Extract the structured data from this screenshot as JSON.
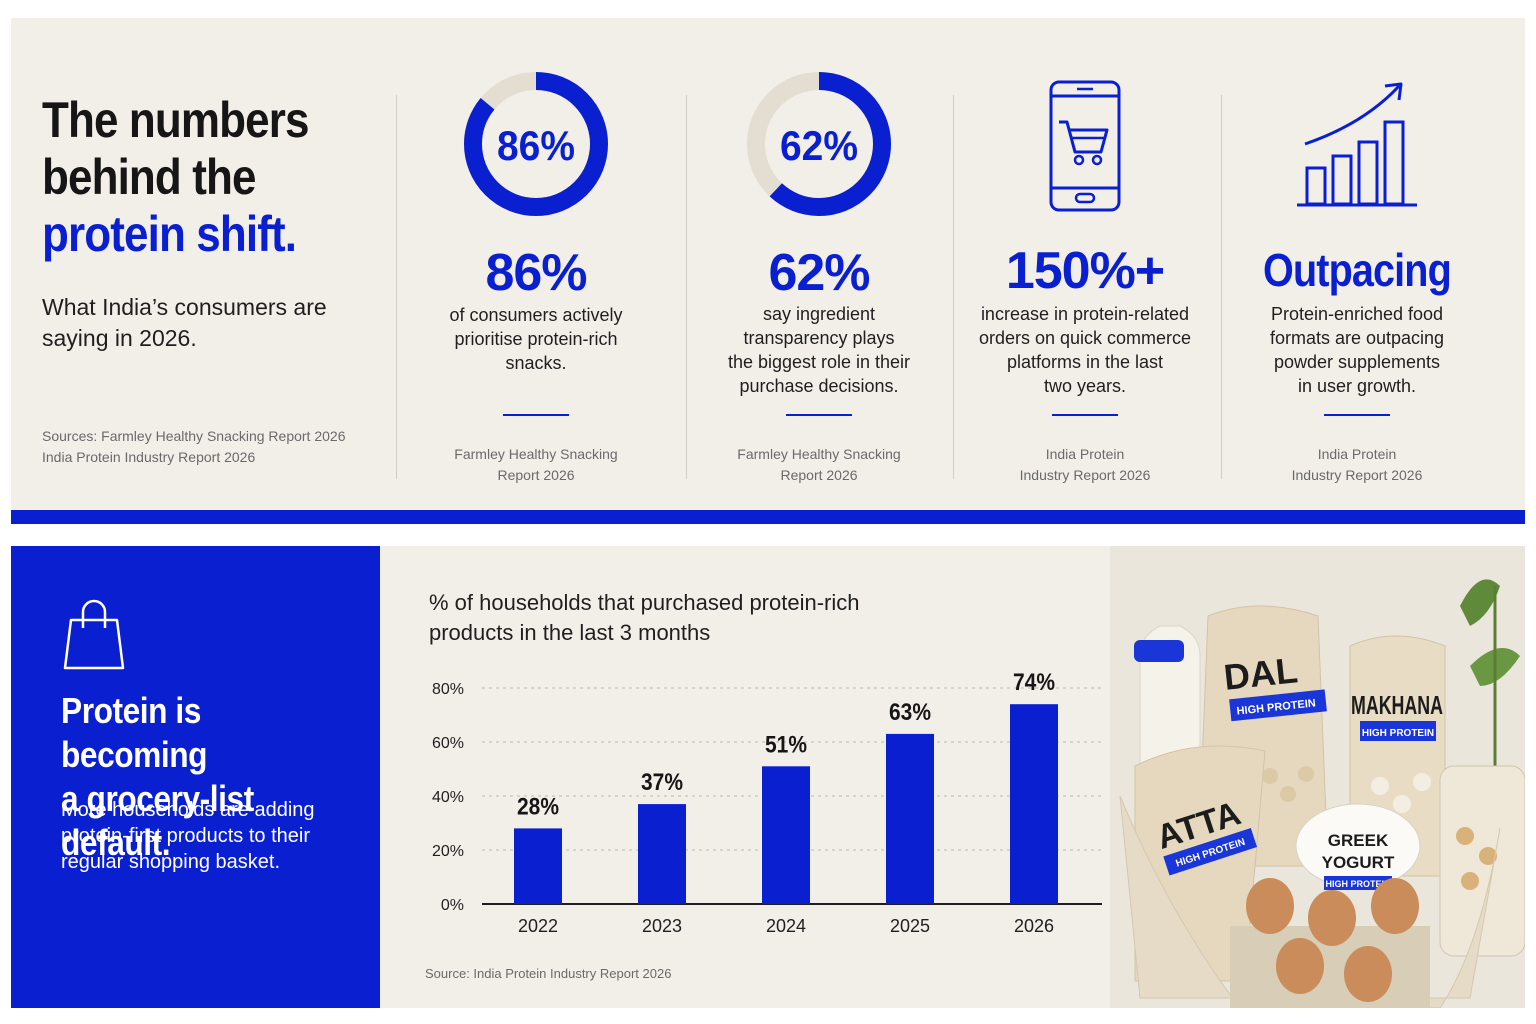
{
  "header": {
    "headline_line1": "The numbers",
    "headline_line2": "behind the",
    "headline_line3": "protein shift.",
    "subhead": "What India’s consumers are saying in 2026.",
    "sources_line1": "Sources: Farmley Healthy Snacking Report 2026",
    "sources_line2": "India Protein Industry Report 2026"
  },
  "stats": [
    {
      "ring_label": "86%",
      "ring_fraction": 0.86,
      "value": "86%",
      "desc_lines": [
        "of consumers actively",
        "prioritise protein-rich",
        "snacks."
      ],
      "source_lines": [
        "Farmley Healthy Snacking",
        "Report 2026"
      ]
    },
    {
      "ring_label": "62%",
      "ring_fraction": 0.62,
      "value": "62%",
      "desc_lines": [
        "say ingredient",
        "transparency plays",
        "the biggest role in their",
        "purchase decisions."
      ],
      "source_lines": [
        "Farmley Healthy Snacking",
        "Report 2026"
      ]
    },
    {
      "icon": "phone-cart-icon",
      "value": "150%+",
      "desc_lines": [
        "increase in protein-related",
        "orders on quick commerce",
        "platforms in the last",
        "two years."
      ],
      "source_lines": [
        "India Protein",
        "Industry Report 2026"
      ]
    },
    {
      "icon": "growth-chart-icon",
      "value": "Outpacing",
      "desc_lines": [
        "Protein-enriched food",
        "formats are outpacing",
        "powder supplements",
        "in user growth."
      ],
      "source_lines": [
        "India Protein",
        "Industry Report 2026"
      ]
    }
  ],
  "grocery": {
    "icon": "shopping-bag-icon",
    "title_line1": "Protein is becoming",
    "title_line2": "a grocery-list default.",
    "body": "More households are adding protein-first products to their regular shopping basket."
  },
  "chart_data": {
    "type": "bar",
    "title_line1": "% of households that purchased protein-rich",
    "title_line2": "products in the last 3 months",
    "categories": [
      "2022",
      "2023",
      "2024",
      "2025",
      "2026"
    ],
    "values": [
      28,
      37,
      51,
      63,
      74
    ],
    "data_labels": [
      "28%",
      "37%",
      "51%",
      "63%",
      "74%"
    ],
    "yticks": [
      0,
      20,
      40,
      60,
      80
    ],
    "ytick_labels": [
      "0%",
      "20%",
      "40%",
      "60%",
      "80%"
    ],
    "ylim": [
      0,
      80
    ],
    "grid": true,
    "source": "Source: India Protein Industry Report 2026"
  },
  "product_photo": {
    "labels": [
      "DAL",
      "MAKHANA",
      "ATTA",
      "GREEK",
      "YOGURT"
    ],
    "badge": "HIGH PROTEIN"
  },
  "colors": {
    "accent": "#0a1fd0",
    "panel": "#f2efe9",
    "ring_track": "#e4ddd1"
  }
}
